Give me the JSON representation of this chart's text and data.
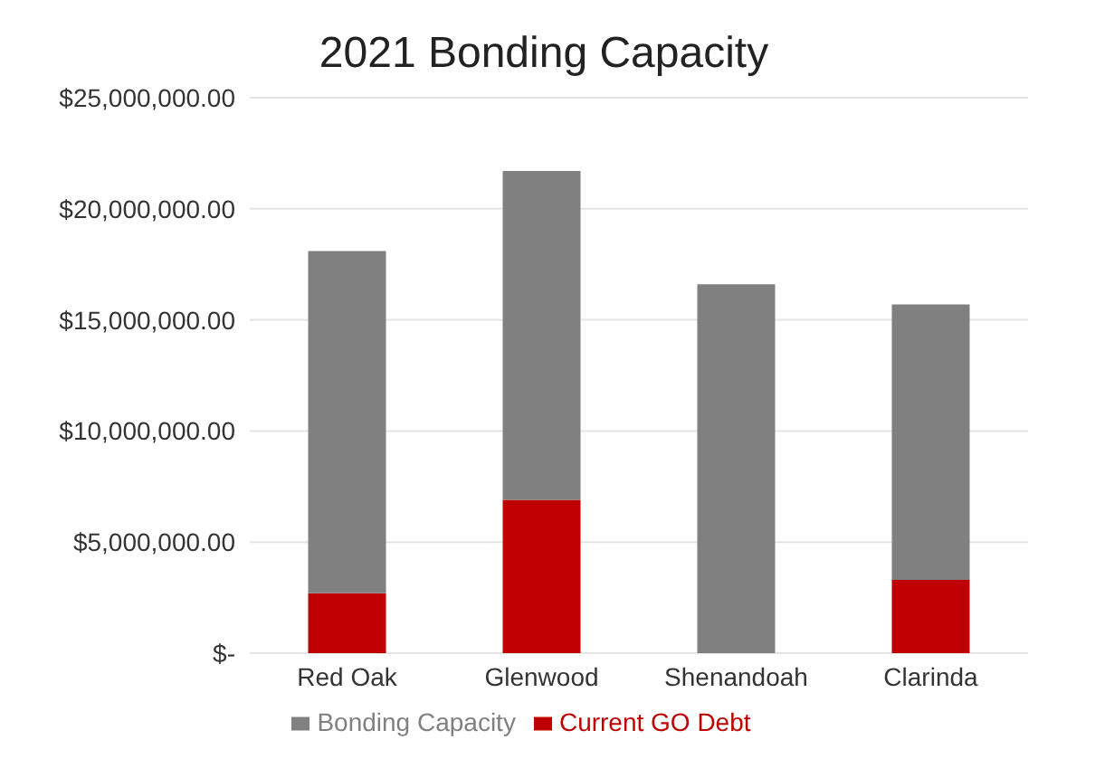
{
  "chart_data": {
    "type": "bar",
    "title": "2021 Bonding Capacity",
    "categories": [
      "Red Oak",
      "Glenwood",
      "Shenandoah",
      "Clarinda"
    ],
    "stacked": true,
    "series": [
      {
        "name": "Current GO Debt",
        "color": "#c00000",
        "values": [
          2700000.0,
          6900000.0,
          0,
          3300000.0
        ]
      },
      {
        "name": "Bonding Capacity",
        "color": "#808080",
        "values": [
          15400000.0,
          14800000.0,
          16600000.0,
          12400000.0
        ]
      }
    ],
    "ylim": [
      0,
      25000000
    ],
    "yticks": [
      {
        "value": 0,
        "label": "$-"
      },
      {
        "value": 5000000,
        "label": "$5,000,000.00"
      },
      {
        "value": 10000000,
        "label": "$10,000,000.00"
      },
      {
        "value": 15000000,
        "label": "$15,000,000.00"
      },
      {
        "value": 20000000,
        "label": "$20,000,000.00"
      },
      {
        "value": 25000000,
        "label": "$25,000,000.00"
      }
    ],
    "grid": "y",
    "legend": "bottom"
  }
}
